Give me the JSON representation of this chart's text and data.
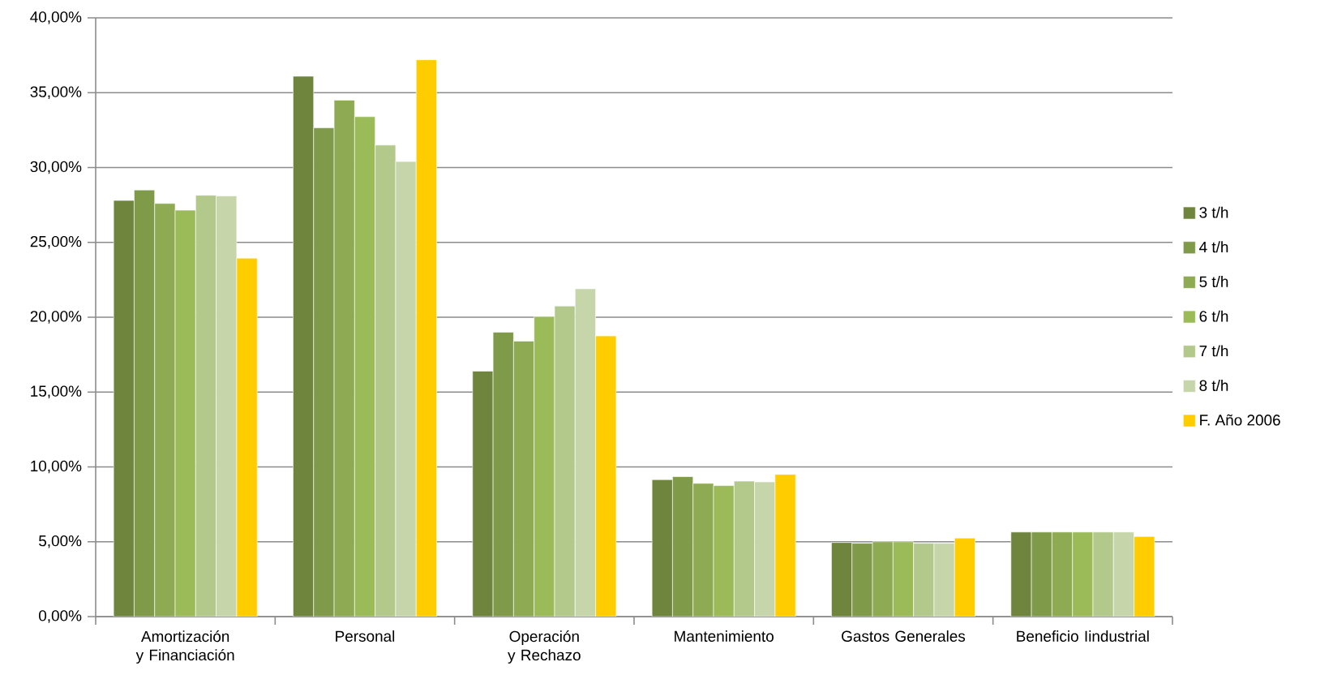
{
  "chart_data": {
    "type": "bar",
    "categories": [
      "Amortización y Financiación",
      "Personal",
      "Operación y Rechazo",
      "Mantenimiento",
      "Gastos Generales",
      "Beneficio Iindustrial"
    ],
    "series": [
      {
        "name": "3 t/h",
        "color": "#6f853e",
        "values": [
          27.8,
          36.1,
          16.4,
          9.15,
          4.95,
          5.65
        ]
      },
      {
        "name": "4 t/h",
        "color": "#7f9a49",
        "values": [
          28.5,
          32.65,
          19.0,
          9.35,
          4.9,
          5.65
        ]
      },
      {
        "name": "5 t/h",
        "color": "#8eaa52",
        "values": [
          27.6,
          34.5,
          18.4,
          8.9,
          5.0,
          5.65
        ]
      },
      {
        "name": "6 t/h",
        "color": "#9bbb59",
        "values": [
          27.15,
          33.4,
          20.05,
          8.75,
          5.0,
          5.65
        ]
      },
      {
        "name": "7 t/h",
        "color": "#b3c98c",
        "values": [
          28.15,
          31.5,
          20.75,
          9.05,
          4.9,
          5.65
        ]
      },
      {
        "name": "8 t/h",
        "color": "#c6d6aa",
        "values": [
          28.1,
          30.4,
          21.9,
          9.0,
          4.9,
          5.65
        ]
      },
      {
        "name": "F. Año 2006",
        "color": "#ffcc00",
        "values": [
          23.95,
          37.2,
          18.75,
          9.5,
          5.25,
          5.35
        ]
      }
    ],
    "ylim": [
      0,
      40
    ],
    "yticks": [
      {
        "value": 0,
        "label": "0,00%"
      },
      {
        "value": 5,
        "label": "5,00%"
      },
      {
        "value": 10,
        "label": "10,00%"
      },
      {
        "value": 15,
        "label": "15,00%"
      },
      {
        "value": 20,
        "label": "20,00%"
      },
      {
        "value": 25,
        "label": "25,00%"
      },
      {
        "value": 30,
        "label": "30,00%"
      },
      {
        "value": 35,
        "label": "35,00%"
      },
      {
        "value": 40,
        "label": "40,00%"
      }
    ],
    "grid": "y",
    "legend": "right"
  }
}
